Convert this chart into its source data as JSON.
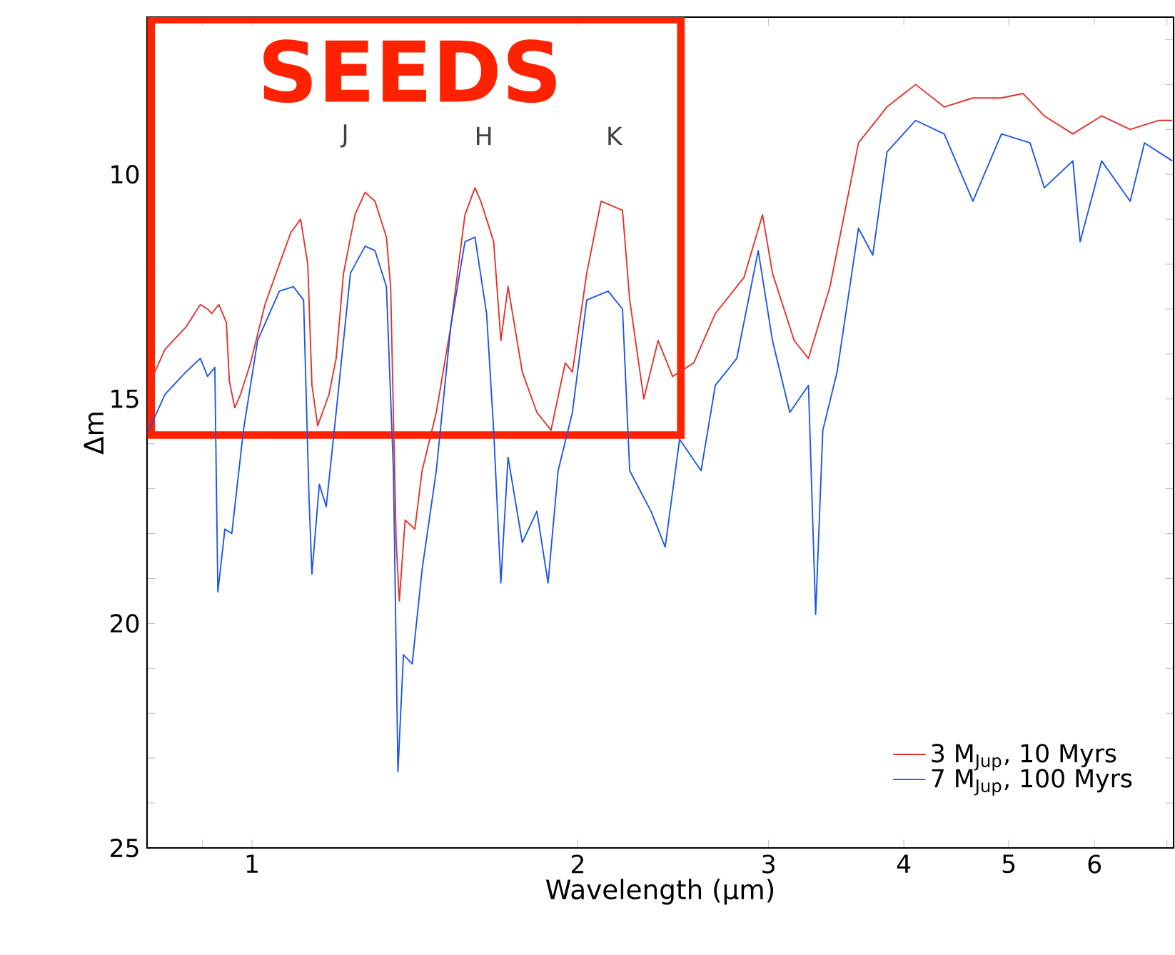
{
  "chart_data": {
    "type": "line",
    "xlabel": "Wavelength (μm)",
    "ylabel": "Δm",
    "log": "x",
    "legend": "bottom right",
    "xlim": [
      0.8,
      7.1
    ],
    "ylim": [
      25,
      6.5
    ],
    "xticks": [
      {
        "value": 0.8,
        "label": null
      },
      {
        "value": 0.9,
        "label": null
      },
      1,
      2,
      3,
      4,
      5,
      6,
      {
        "value": 7,
        "label": null
      }
    ],
    "yticks": [
      {
        "value": 7,
        "label": null
      },
      {
        "value": 8,
        "label": null
      },
      {
        "value": 9,
        "label": null
      },
      10,
      {
        "value": 11,
        "label": null
      },
      {
        "value": 12,
        "label": null
      },
      {
        "value": 13,
        "label": null
      },
      {
        "value": 14,
        "label": null
      },
      15,
      {
        "value": 16,
        "label": null
      },
      {
        "value": 17,
        "label": null
      },
      {
        "value": 18,
        "label": null
      },
      {
        "value": 19,
        "label": null
      },
      20,
      {
        "value": 21,
        "label": null
      },
      {
        "value": 22,
        "label": null
      },
      {
        "value": 23,
        "label": null
      },
      {
        "value": 24,
        "label": null
      },
      25
    ],
    "annotations": [
      "SEEDS",
      "J",
      "H",
      "K"
    ],
    "series": [
      {
        "name": "3 M$_{Jup}$, 10 Myrs",
        "color": "#e8302a",
        "x": [
          0.803,
          0.831,
          0.869,
          0.896,
          0.91,
          0.918,
          0.932,
          0.947,
          0.953,
          0.964,
          0.976,
          0.997,
          1.028,
          1.06,
          1.086,
          1.109,
          1.126,
          1.136,
          1.15,
          1.178,
          1.196,
          1.215,
          1.245,
          1.272,
          1.299,
          1.331,
          1.343,
          1.359,
          1.368,
          1.385,
          1.414,
          1.436,
          1.48,
          1.526,
          1.573,
          1.607,
          1.627,
          1.647,
          1.672,
          1.698,
          1.724,
          1.777,
          1.833,
          1.889,
          1.947,
          1.977,
          2.038,
          2.101,
          2.199,
          2.233,
          2.301,
          2.372,
          2.446,
          2.559,
          2.679,
          2.847,
          2.962,
          3.025,
          3.168,
          3.266,
          3.419,
          3.633,
          3.86,
          4.102,
          4.359,
          4.633,
          4.923,
          5.152,
          5.393,
          5.731,
          6.092,
          6.474,
          6.88,
          7.08
        ],
        "values": [
          14.7,
          13.9,
          13.4,
          12.9,
          13.0,
          13.1,
          12.9,
          13.3,
          14.6,
          15.2,
          14.9,
          14.2,
          12.9,
          12.0,
          11.3,
          11.0,
          12.0,
          14.7,
          15.6,
          14.9,
          14.1,
          12.2,
          10.9,
          10.4,
          10.6,
          11.4,
          12.5,
          18.2,
          19.5,
          17.7,
          17.9,
          16.6,
          15.3,
          13.4,
          10.9,
          10.3,
          10.6,
          11.0,
          11.5,
          13.7,
          12.5,
          14.4,
          15.3,
          15.7,
          14.2,
          14.4,
          12.2,
          10.6,
          10.8,
          12.8,
          15.0,
          13.7,
          14.5,
          14.2,
          13.1,
          12.3,
          10.9,
          12.2,
          13.7,
          14.1,
          12.5,
          9.3,
          8.5,
          8.0,
          8.5,
          8.3,
          8.3,
          8.2,
          8.7,
          9.1,
          8.7,
          9.0,
          8.8,
          8.8
        ]
      },
      {
        "name": "7 M$_{Jup}$, 100 Myrs",
        "color": "#1a55f0",
        "x": [
          0.803,
          0.831,
          0.869,
          0.896,
          0.91,
          0.924,
          0.93,
          0.944,
          0.958,
          0.982,
          1.012,
          1.06,
          1.092,
          1.116,
          1.129,
          1.136,
          1.154,
          1.171,
          1.196,
          1.233,
          1.272,
          1.299,
          1.331,
          1.351,
          1.364,
          1.38,
          1.406,
          1.436,
          1.48,
          1.526,
          1.573,
          1.607,
          1.647,
          1.672,
          1.698,
          1.724,
          1.777,
          1.833,
          1.877,
          1.918,
          1.977,
          2.038,
          2.133,
          2.199,
          2.233,
          2.336,
          2.408,
          2.483,
          2.599,
          2.679,
          2.804,
          2.935,
          3.025,
          3.139,
          3.266,
          3.316,
          3.367,
          3.471,
          3.633,
          3.745,
          3.86,
          4.102,
          4.359,
          4.633,
          4.923,
          5.232,
          5.393,
          5.731,
          5.82,
          6.092,
          6.474,
          6.674,
          7.08
        ],
        "values": [
          15.7,
          14.9,
          14.4,
          14.1,
          14.5,
          14.3,
          19.3,
          17.9,
          18.0,
          15.7,
          13.7,
          12.6,
          12.5,
          12.8,
          17.2,
          18.9,
          16.9,
          17.4,
          15.3,
          12.2,
          11.6,
          11.7,
          12.5,
          16.6,
          23.3,
          20.7,
          20.9,
          18.8,
          16.6,
          13.4,
          11.5,
          11.4,
          13.1,
          15.7,
          19.1,
          16.3,
          18.2,
          17.5,
          19.1,
          16.6,
          15.3,
          12.8,
          12.6,
          13.0,
          16.6,
          17.5,
          18.3,
          15.9,
          16.6,
          14.7,
          14.1,
          11.7,
          13.7,
          15.3,
          14.7,
          19.8,
          15.7,
          14.4,
          11.2,
          11.8,
          9.5,
          8.8,
          9.1,
          10.6,
          9.1,
          9.3,
          10.3,
          9.7,
          11.5,
          9.7,
          10.6,
          9.3,
          9.7
        ]
      }
    ]
  }
}
